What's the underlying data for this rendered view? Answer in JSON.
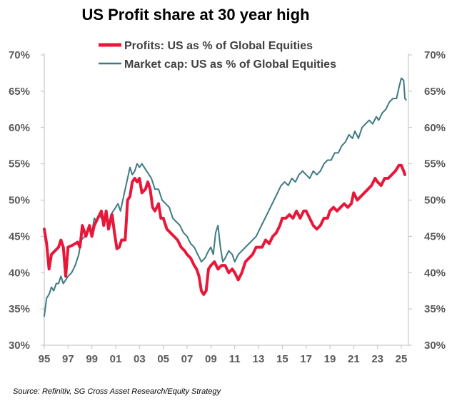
{
  "chart_data": {
    "type": "line",
    "title": "US Profit share at 30 year high",
    "source": "Source: Refinitiv, SG Cross Asset Research/Equity Strategy",
    "xlabel": "",
    "ylabel": "",
    "xlim": [
      1995,
      2025.6
    ],
    "ylim": [
      30,
      70
    ],
    "x_ticks": [
      "95",
      "97",
      "99",
      "01",
      "03",
      "05",
      "07",
      "09",
      "11",
      "13",
      "15",
      "17",
      "19",
      "21",
      "23",
      "25"
    ],
    "y_ticks": [
      "30%",
      "35%",
      "40%",
      "45%",
      "50%",
      "55%",
      "60%",
      "65%",
      "70%"
    ],
    "legend_position": "top",
    "grid": false,
    "series": [
      {
        "name": "Profits: US as % of Global Equities",
        "color": "#e8173a",
        "points": [
          [
            1995.0,
            46.0
          ],
          [
            1995.2,
            44.0
          ],
          [
            1995.4,
            40.5
          ],
          [
            1995.6,
            42.5
          ],
          [
            1995.9,
            43.0
          ],
          [
            1996.2,
            43.5
          ],
          [
            1996.4,
            44.5
          ],
          [
            1996.6,
            43.5
          ],
          [
            1996.8,
            39.5
          ],
          [
            1997.0,
            43.5
          ],
          [
            1997.4,
            43.8
          ],
          [
            1997.8,
            44.2
          ],
          [
            1998.0,
            43.5
          ],
          [
            1998.2,
            46.5
          ],
          [
            1998.5,
            45.0
          ],
          [
            1998.8,
            46.5
          ],
          [
            1999.0,
            45.0
          ],
          [
            1999.2,
            46.5
          ],
          [
            1999.5,
            47.5
          ],
          [
            1999.8,
            48.5
          ],
          [
            2000.0,
            46.5
          ],
          [
            2000.2,
            48.5
          ],
          [
            2000.4,
            46.0
          ],
          [
            2000.7,
            48.0
          ],
          [
            2000.9,
            45.5
          ],
          [
            2001.1,
            43.3
          ],
          [
            2001.3,
            43.5
          ],
          [
            2001.5,
            44.5
          ],
          [
            2001.8,
            44.5
          ],
          [
            2002.0,
            50.0
          ],
          [
            2002.2,
            50.5
          ],
          [
            2002.4,
            52.5
          ],
          [
            2002.6,
            53.0
          ],
          [
            2002.8,
            52.5
          ],
          [
            2003.0,
            53.0
          ],
          [
            2003.2,
            51.0
          ],
          [
            2003.5,
            51.5
          ],
          [
            2003.7,
            52.5
          ],
          [
            2003.9,
            51.5
          ],
          [
            2004.1,
            49.0
          ],
          [
            2004.3,
            48.5
          ],
          [
            2004.6,
            49.5
          ],
          [
            2004.8,
            47.5
          ],
          [
            2005.0,
            47.5
          ],
          [
            2005.3,
            46.0
          ],
          [
            2005.6,
            45.5
          ],
          [
            2005.9,
            45.0
          ],
          [
            2006.2,
            44.5
          ],
          [
            2006.5,
            43.5
          ],
          [
            2006.8,
            43.0
          ],
          [
            2007.0,
            42.5
          ],
          [
            2007.3,
            42.0
          ],
          [
            2007.6,
            41.0
          ],
          [
            2007.8,
            40.5
          ],
          [
            2008.0,
            39.5
          ],
          [
            2008.2,
            37.5
          ],
          [
            2008.4,
            37.0
          ],
          [
            2008.6,
            37.5
          ],
          [
            2008.8,
            40.5
          ],
          [
            2009.0,
            41.0
          ],
          [
            2009.3,
            41.5
          ],
          [
            2009.6,
            40.5
          ],
          [
            2009.9,
            41.0
          ],
          [
            2010.2,
            41.0
          ],
          [
            2010.5,
            40.0
          ],
          [
            2010.8,
            40.5
          ],
          [
            2011.0,
            40.0
          ],
          [
            2011.3,
            39.0
          ],
          [
            2011.6,
            40.0
          ],
          [
            2011.9,
            41.5
          ],
          [
            2012.2,
            42.0
          ],
          [
            2012.5,
            42.5
          ],
          [
            2012.8,
            43.5
          ],
          [
            2013.0,
            43.5
          ],
          [
            2013.3,
            43.5
          ],
          [
            2013.6,
            44.5
          ],
          [
            2013.9,
            44.0
          ],
          [
            2014.2,
            45.0
          ],
          [
            2014.5,
            45.5
          ],
          [
            2014.8,
            46.5
          ],
          [
            2015.0,
            47.5
          ],
          [
            2015.3,
            47.5
          ],
          [
            2015.6,
            48.0
          ],
          [
            2015.9,
            47.5
          ],
          [
            2016.2,
            48.5
          ],
          [
            2016.5,
            47.5
          ],
          [
            2016.8,
            48.5
          ],
          [
            2017.0,
            48.5
          ],
          [
            2017.3,
            47.5
          ],
          [
            2017.6,
            46.5
          ],
          [
            2017.9,
            46.0
          ],
          [
            2018.2,
            46.5
          ],
          [
            2018.5,
            47.5
          ],
          [
            2018.8,
            47.5
          ],
          [
            2019.0,
            48.5
          ],
          [
            2019.3,
            49.0
          ],
          [
            2019.6,
            48.5
          ],
          [
            2019.9,
            49.0
          ],
          [
            2020.2,
            49.5
          ],
          [
            2020.5,
            49.0
          ],
          [
            2020.8,
            49.5
          ],
          [
            2021.0,
            51.0
          ],
          [
            2021.3,
            50.0
          ],
          [
            2021.6,
            50.5
          ],
          [
            2021.9,
            51.0
          ],
          [
            2022.2,
            51.5
          ],
          [
            2022.5,
            52.0
          ],
          [
            2022.8,
            53.0
          ],
          [
            2023.0,
            52.5
          ],
          [
            2023.3,
            52.0
          ],
          [
            2023.6,
            53.0
          ],
          [
            2023.9,
            53.0
          ],
          [
            2024.2,
            53.5
          ],
          [
            2024.5,
            54.0
          ],
          [
            2024.8,
            54.8
          ],
          [
            2025.0,
            54.8
          ],
          [
            2025.2,
            54.0
          ],
          [
            2025.3,
            53.5
          ]
        ]
      },
      {
        "name": "Market cap: US as % of Global Equities",
        "color": "#3e7a82",
        "points": [
          [
            1995.0,
            34.0
          ],
          [
            1995.2,
            36.5
          ],
          [
            1995.4,
            37.0
          ],
          [
            1995.6,
            38.0
          ],
          [
            1995.8,
            37.5
          ],
          [
            1996.0,
            38.5
          ],
          [
            1996.2,
            38.5
          ],
          [
            1996.4,
            39.5
          ],
          [
            1996.6,
            38.5
          ],
          [
            1996.8,
            39.0
          ],
          [
            1997.0,
            39.5
          ],
          [
            1997.3,
            40.0
          ],
          [
            1997.6,
            41.0
          ],
          [
            1997.9,
            42.5
          ],
          [
            1998.1,
            44.5
          ],
          [
            1998.4,
            45.0
          ],
          [
            1998.7,
            46.0
          ],
          [
            1999.0,
            45.5
          ],
          [
            1999.2,
            47.5
          ],
          [
            1999.4,
            47.0
          ],
          [
            1999.6,
            48.0
          ],
          [
            1999.8,
            47.5
          ],
          [
            2000.0,
            47.0
          ],
          [
            2000.2,
            47.5
          ],
          [
            2000.4,
            46.5
          ],
          [
            2000.6,
            48.0
          ],
          [
            2000.8,
            48.5
          ],
          [
            2001.0,
            49.0
          ],
          [
            2001.2,
            49.5
          ],
          [
            2001.4,
            48.5
          ],
          [
            2001.6,
            50.0
          ],
          [
            2001.8,
            51.5
          ],
          [
            2002.0,
            53.0
          ],
          [
            2002.2,
            54.5
          ],
          [
            2002.4,
            53.5
          ],
          [
            2002.6,
            54.0
          ],
          [
            2002.8,
            55.0
          ],
          [
            2003.0,
            54.5
          ],
          [
            2003.2,
            55.0
          ],
          [
            2003.4,
            54.5
          ],
          [
            2003.6,
            54.0
          ],
          [
            2003.8,
            53.5
          ],
          [
            2004.0,
            53.0
          ],
          [
            2004.3,
            51.5
          ],
          [
            2004.6,
            51.5
          ],
          [
            2004.9,
            50.0
          ],
          [
            2005.2,
            49.5
          ],
          [
            2005.5,
            49.0
          ],
          [
            2005.8,
            47.5
          ],
          [
            2006.1,
            47.0
          ],
          [
            2006.4,
            46.5
          ],
          [
            2006.7,
            45.5
          ],
          [
            2007.0,
            45.0
          ],
          [
            2007.3,
            44.0
          ],
          [
            2007.6,
            43.5
          ],
          [
            2007.9,
            42.5
          ],
          [
            2008.2,
            41.5
          ],
          [
            2008.5,
            42.0
          ],
          [
            2008.8,
            43.0
          ],
          [
            2009.0,
            43.5
          ],
          [
            2009.2,
            42.5
          ],
          [
            2009.4,
            45.5
          ],
          [
            2009.6,
            46.5
          ],
          [
            2009.8,
            43.5
          ],
          [
            2010.0,
            41.5
          ],
          [
            2010.2,
            42.0
          ],
          [
            2010.5,
            43.0
          ],
          [
            2010.8,
            42.5
          ],
          [
            2011.0,
            41.5
          ],
          [
            2011.3,
            42.5
          ],
          [
            2011.6,
            43.0
          ],
          [
            2011.9,
            43.5
          ],
          [
            2012.2,
            44.0
          ],
          [
            2012.5,
            44.5
          ],
          [
            2012.8,
            45.0
          ],
          [
            2013.1,
            46.0
          ],
          [
            2013.4,
            47.0
          ],
          [
            2013.7,
            48.0
          ],
          [
            2014.0,
            49.0
          ],
          [
            2014.3,
            50.0
          ],
          [
            2014.6,
            51.0
          ],
          [
            2014.9,
            52.0
          ],
          [
            2015.2,
            52.5
          ],
          [
            2015.5,
            52.0
          ],
          [
            2015.8,
            53.0
          ],
          [
            2016.1,
            52.5
          ],
          [
            2016.4,
            53.5
          ],
          [
            2016.7,
            54.0
          ],
          [
            2017.0,
            53.5
          ],
          [
            2017.3,
            53.0
          ],
          [
            2017.6,
            54.0
          ],
          [
            2017.9,
            53.5
          ],
          [
            2018.2,
            54.0
          ],
          [
            2018.5,
            55.0
          ],
          [
            2018.8,
            55.5
          ],
          [
            2019.1,
            55.5
          ],
          [
            2019.4,
            56.5
          ],
          [
            2019.7,
            56.5
          ],
          [
            2020.0,
            57.5
          ],
          [
            2020.3,
            58.0
          ],
          [
            2020.6,
            59.0
          ],
          [
            2020.9,
            58.5
          ],
          [
            2021.1,
            59.5
          ],
          [
            2021.4,
            58.5
          ],
          [
            2021.7,
            60.0
          ],
          [
            2022.0,
            60.5
          ],
          [
            2022.3,
            61.0
          ],
          [
            2022.6,
            60.5
          ],
          [
            2022.9,
            61.5
          ],
          [
            2023.1,
            61.0
          ],
          [
            2023.4,
            62.0
          ],
          [
            2023.7,
            62.5
          ],
          [
            2024.0,
            63.5
          ],
          [
            2024.3,
            64.0
          ],
          [
            2024.6,
            64.0
          ],
          [
            2024.8,
            65.5
          ],
          [
            2025.0,
            66.8
          ],
          [
            2025.2,
            66.5
          ],
          [
            2025.3,
            64.0
          ],
          [
            2025.4,
            63.8
          ]
        ]
      }
    ]
  }
}
